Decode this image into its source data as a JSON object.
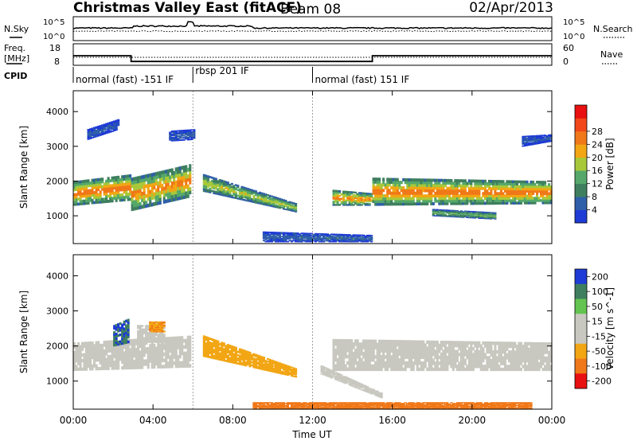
{
  "header": {
    "title": "Christmas Valley East (fitACF)",
    "beam": "Beam 08",
    "date": "02/Apr/2013"
  },
  "status_panels": {
    "nsky_label": "N.Sky",
    "nsky_ticks": [
      "10^5",
      "10^0"
    ],
    "nsearch_label": "N.Search",
    "nsearch_ticks": [
      "10^5",
      "10^0"
    ],
    "freq_label": "Freq.",
    "freq_unit": "[MHz]",
    "freq_ticks": [
      "18",
      "8"
    ],
    "nave_label": "Nave",
    "nave_ticks": [
      "60",
      "0"
    ],
    "cpid_label": "CPID",
    "cpid_segments": [
      {
        "label": "normal (fast) -151 IF",
        "start_hour": 0,
        "end_hour": 6
      },
      {
        "label": "rbsp 201 IF",
        "start_hour": 6,
        "end_hour": 12
      },
      {
        "label": "normal (fast) 151 IF",
        "start_hour": 12,
        "end_hour": 24
      }
    ],
    "freq_profile": [
      {
        "start_hour": 0,
        "end_hour": 2.9,
        "mhz": 13
      },
      {
        "start_hour": 2.9,
        "end_hour": 15,
        "mhz": 10
      },
      {
        "start_hour": 15,
        "end_hour": 24,
        "mhz": 13
      }
    ]
  },
  "colors": {
    "power_scale": [
      "#1e3bd6",
      "#2f5fa8",
      "#3f7f5f",
      "#55a86a",
      "#a8c83a",
      "#f2a614",
      "#f07818",
      "#f04818",
      "#e81010"
    ],
    "velocity_scale": [
      "#1e3bd6",
      "#3f7f5f",
      "#63c450",
      "#c8c8c0",
      "#c8c8c0",
      "#f2a614",
      "#f07818",
      "#e81010"
    ]
  },
  "chart_data": [
    {
      "type": "heatmap",
      "title": "",
      "xlabel": "",
      "ylabel": "Slant Range [km]",
      "xlim": [
        0,
        24
      ],
      "ylim": [
        200,
        4600
      ],
      "yticks": [
        "1000",
        "2000",
        "3000",
        "4000"
      ],
      "colorbar_label": "Power [dB]",
      "colorbar_ticks": [
        "4",
        "8",
        "12",
        "16",
        "20",
        "24",
        "28"
      ],
      "colorbar_range": [
        0,
        32
      ],
      "features": [
        {
          "t0": 0.0,
          "t1": 2.9,
          "r_low": [
            1300,
            1450
          ],
          "r_high": [
            2000,
            2200
          ],
          "peak_db": 28
        },
        {
          "t0": 2.9,
          "t1": 5.9,
          "r_low": [
            1150,
            1550
          ],
          "r_high": [
            2100,
            2500
          ],
          "peak_db": 26
        },
        {
          "t0": 6.5,
          "t1": 11.2,
          "r_low": [
            1700,
            1100
          ],
          "r_high": [
            2200,
            1350
          ],
          "peak_db": 20
        },
        {
          "t0": 13.0,
          "t1": 15.0,
          "r_low": [
            1300,
            1300
          ],
          "r_high": [
            1750,
            1650
          ],
          "peak_db": 26
        },
        {
          "t0": 15.0,
          "t1": 24.0,
          "r_low": [
            1300,
            1350
          ],
          "r_high": [
            2100,
            2000
          ],
          "peak_db": 28
        },
        {
          "t0": 18.0,
          "t1": 21.2,
          "r_low": [
            1000,
            900
          ],
          "r_high": [
            1200,
            1100
          ],
          "peak_db": 16
        },
        {
          "t0": 0.7,
          "t1": 2.3,
          "r_low": [
            3200,
            3500
          ],
          "r_high": [
            3500,
            3800
          ],
          "peak_db": 6
        },
        {
          "t0": 4.8,
          "t1": 6.1,
          "r_low": [
            3150,
            3200
          ],
          "r_high": [
            3450,
            3500
          ],
          "peak_db": 6
        },
        {
          "t0": 22.5,
          "t1": 24.0,
          "r_low": [
            3000,
            3150
          ],
          "r_high": [
            3300,
            3350
          ],
          "peak_db": 6
        },
        {
          "t0": 9.5,
          "t1": 15.0,
          "r_low": [
            250,
            250
          ],
          "r_high": [
            550,
            450
          ],
          "peak_db": 7
        }
      ]
    },
    {
      "type": "heatmap",
      "title": "",
      "xlabel": "Time UT",
      "ylabel": "Slant Range [km]",
      "xlim": [
        0,
        24
      ],
      "ylim": [
        200,
        4600
      ],
      "xticks": [
        "00:00",
        "04:00",
        "08:00",
        "12:00",
        "16:00",
        "20:00",
        "00:00"
      ],
      "yticks": [
        "1000",
        "2000",
        "3000",
        "4000"
      ],
      "colorbar_label": "Velocity [m s^-1]",
      "colorbar_ticks": [
        "200",
        "100",
        "50",
        "15",
        "-15",
        "-50",
        "-100",
        "-200"
      ],
      "colorbar_range": [
        -250,
        250
      ],
      "features": [
        {
          "t0": 0.0,
          "t1": 5.9,
          "r_low": [
            1300,
            1400
          ],
          "r_high": [
            2100,
            2300
          ],
          "velocity": 0
        },
        {
          "t0": 2.0,
          "t1": 2.8,
          "r_low": [
            2000,
            2100
          ],
          "r_high": [
            2600,
            2800
          ],
          "velocity": 200
        },
        {
          "t0": 3.2,
          "t1": 4.6,
          "r_low": [
            2100,
            2100
          ],
          "r_high": [
            2600,
            2600
          ],
          "velocity": 40
        },
        {
          "t0": 3.8,
          "t1": 4.6,
          "r_low": [
            2400,
            2400
          ],
          "r_high": [
            2700,
            2700
          ],
          "velocity": -50
        },
        {
          "t0": 6.5,
          "t1": 11.2,
          "r_low": [
            1700,
            1100
          ],
          "r_high": [
            2300,
            1350
          ],
          "velocity": -40
        },
        {
          "t0": 13.0,
          "t1": 24.0,
          "r_low": [
            1300,
            1300
          ],
          "r_high": [
            2200,
            2100
          ],
          "velocity": 0
        },
        {
          "t0": 12.4,
          "t1": 15.5,
          "r_low": [
            1200,
            500
          ],
          "r_high": [
            1450,
            650
          ],
          "velocity": 40
        },
        {
          "t0": 9.0,
          "t1": 23.0,
          "r_low": [
            200,
            200
          ],
          "r_high": [
            400,
            400
          ],
          "velocity": -60
        }
      ]
    }
  ]
}
